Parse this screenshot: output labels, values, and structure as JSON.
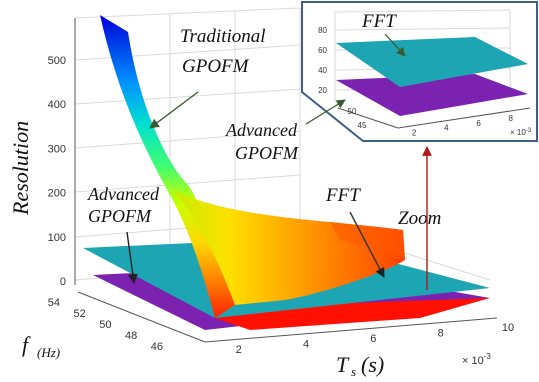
{
  "chart_data": {
    "type": "surface3d",
    "zlabel": "Resolution",
    "ylabel": "f",
    "ylabel_sub": "(Hz)",
    "xlabel": "T",
    "xlabel_sub": "s",
    "xlabel_unit": "(s)",
    "x_exponent": "× 10",
    "x_exponent_power": "-3",
    "x_ticks": [
      "2",
      "4",
      "6",
      "8",
      "10"
    ],
    "y_ticks": [
      "54",
      "52",
      "50",
      "48",
      "46"
    ],
    "z_ticks": [
      "0",
      "100",
      "200",
      "300",
      "400",
      "500"
    ],
    "xlim": [
      1,
      10
    ],
    "ylim": [
      45,
      55
    ],
    "zlim": [
      0,
      580
    ],
    "series": [
      {
        "name": "Traditional GPOFM",
        "colormap": "jet",
        "points": [
          {
            "x": 1,
            "y": 55,
            "z": 578
          },
          {
            "x": 2,
            "y": 55,
            "z": 285
          },
          {
            "x": 4,
            "y": 55,
            "z": 160
          },
          {
            "x": 6,
            "y": 55,
            "z": 125
          },
          {
            "x": 8,
            "y": 55,
            "z": 105
          },
          {
            "x": 10,
            "y": 55,
            "z": 100
          },
          {
            "x": 1,
            "y": 45,
            "z": 10
          }
        ]
      },
      {
        "name": "FFT",
        "color": "#1ea5b3",
        "z": 45
      },
      {
        "name": "Advanced GPOFM",
        "color": "#7b22b0",
        "z": 10
      }
    ],
    "annotations": [
      {
        "line1": "Traditional",
        "line2": "GPOFM"
      },
      {
        "line1": "Advanced",
        "line2": "GPOFM"
      },
      {
        "line1": "FFT"
      },
      {
        "line1": "Zoom"
      }
    ],
    "inset": {
      "title": "FFT",
      "annotation_line1": "Advanced",
      "annotation_line2": "GPOFM",
      "z_ticks": [
        "20",
        "40",
        "60",
        "80"
      ],
      "x_ticks": [
        "2",
        "4",
        "6",
        "8"
      ],
      "y_ticks": [
        "50",
        "45"
      ],
      "x_exponent": "× 10",
      "x_exponent_power": "-3",
      "fft_z": 45,
      "advanced_z": 10,
      "border_color": "#3f5f8a"
    },
    "colors": {
      "fft": "#1ea5b3",
      "advanced": "#7b22b0",
      "arrow": "#3a5a30",
      "zoom_arrow": "#b01818"
    }
  }
}
